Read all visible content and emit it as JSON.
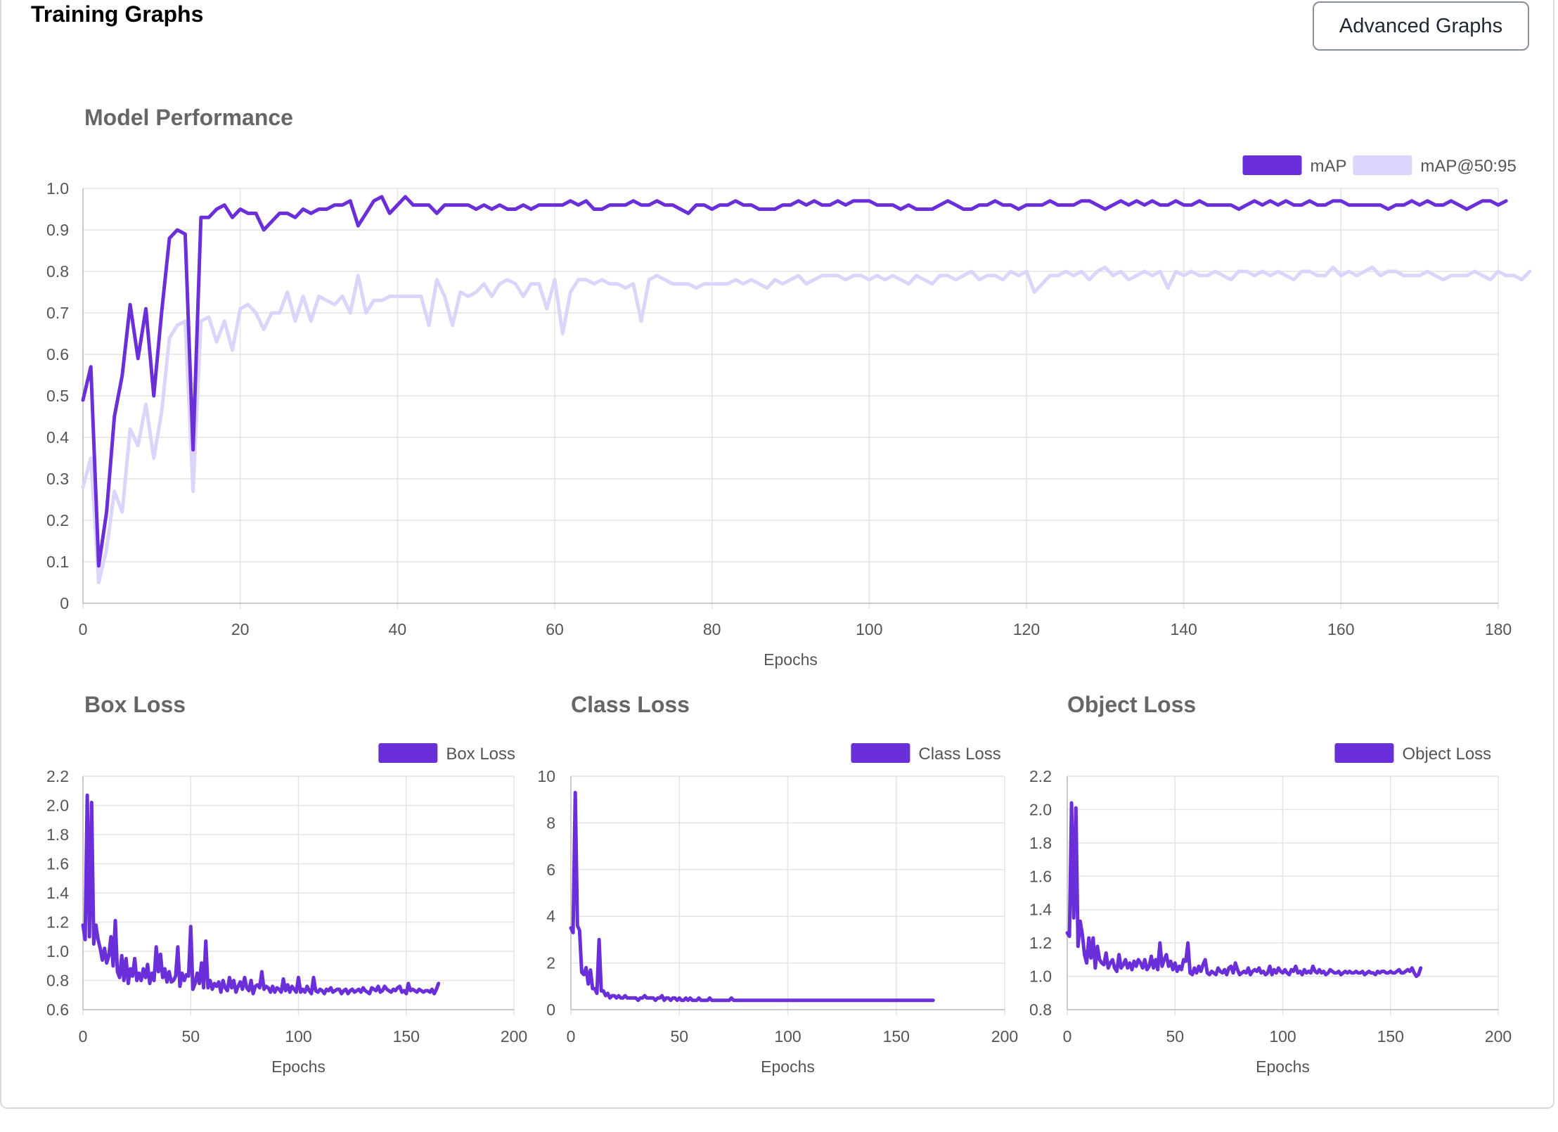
{
  "header": {
    "title": "Training Graphs",
    "advanced_button": "Advanced Graphs"
  },
  "colors": {
    "primary": "#6a2fd8",
    "secondary": "#dcd4fa",
    "grid": "#e4e4e4",
    "axis_text": "#555555",
    "title_text": "#666666"
  },
  "chart_data": [
    {
      "id": "performance",
      "type": "line",
      "title": "Model Performance",
      "xlabel": "Epochs",
      "ylabel": "",
      "xlim": [
        0,
        180
      ],
      "ylim": [
        0,
        1.0
      ],
      "xticks": [
        "0",
        "20",
        "40",
        "60",
        "80",
        "100",
        "120",
        "140",
        "160",
        "180"
      ],
      "yticks": [
        "0",
        "0.1",
        "0.2",
        "0.3",
        "0.4",
        "0.5",
        "0.6",
        "0.7",
        "0.8",
        "0.9",
        "1.0"
      ],
      "legend_position": "top-right",
      "grid": true,
      "series": [
        {
          "name": "mAP",
          "color": "#6a2fd8",
          "values": [
            0.49,
            0.57,
            0.09,
            0.22,
            0.45,
            0.55,
            0.72,
            0.59,
            0.71,
            0.5,
            0.7,
            0.88,
            0.9,
            0.89,
            0.37,
            0.93,
            0.93,
            0.95,
            0.96,
            0.93,
            0.95,
            0.94,
            0.94,
            0.9,
            0.92,
            0.94,
            0.94,
            0.93,
            0.95,
            0.94,
            0.95,
            0.95,
            0.96,
            0.96,
            0.97,
            0.91,
            0.94,
            0.97,
            0.98,
            0.94,
            0.96,
            0.98,
            0.96,
            0.96,
            0.96,
            0.94,
            0.96,
            0.96,
            0.96,
            0.96,
            0.95,
            0.96,
            0.95,
            0.96,
            0.95,
            0.95,
            0.96,
            0.95,
            0.96,
            0.96,
            0.96,
            0.96,
            0.97,
            0.96,
            0.97,
            0.95,
            0.95,
            0.96,
            0.96,
            0.96,
            0.97,
            0.96,
            0.96,
            0.97,
            0.96,
            0.96,
            0.95,
            0.94,
            0.96,
            0.96,
            0.95,
            0.96,
            0.96,
            0.97,
            0.96,
            0.96,
            0.95,
            0.95,
            0.95,
            0.96,
            0.96,
            0.97,
            0.96,
            0.97,
            0.96,
            0.96,
            0.97,
            0.96,
            0.97,
            0.97,
            0.97,
            0.96,
            0.96,
            0.96,
            0.95,
            0.96,
            0.95,
            0.95,
            0.95,
            0.96,
            0.97,
            0.96,
            0.95,
            0.95,
            0.96,
            0.96,
            0.97,
            0.96,
            0.96,
            0.95,
            0.96,
            0.96,
            0.96,
            0.97,
            0.96,
            0.96,
            0.96,
            0.97,
            0.97,
            0.96,
            0.95,
            0.96,
            0.97,
            0.96,
            0.97,
            0.96,
            0.97,
            0.96,
            0.96,
            0.97,
            0.96,
            0.96,
            0.97,
            0.96,
            0.96,
            0.96,
            0.96,
            0.95,
            0.96,
            0.97,
            0.96,
            0.97,
            0.96,
            0.97,
            0.96,
            0.96,
            0.97,
            0.96,
            0.96,
            0.97,
            0.97,
            0.96,
            0.96,
            0.96,
            0.96,
            0.96,
            0.95,
            0.96,
            0.96,
            0.97,
            0.96,
            0.97,
            0.96,
            0.96,
            0.97,
            0.96,
            0.95,
            0.96,
            0.97,
            0.97,
            0.96,
            0.97
          ]
        },
        {
          "name": "mAP@50:95",
          "color": "#dcd4fa",
          "values": [
            0.28,
            0.35,
            0.05,
            0.13,
            0.27,
            0.22,
            0.42,
            0.38,
            0.48,
            0.35,
            0.46,
            0.64,
            0.67,
            0.68,
            0.27,
            0.68,
            0.69,
            0.63,
            0.68,
            0.61,
            0.71,
            0.72,
            0.7,
            0.66,
            0.7,
            0.7,
            0.75,
            0.68,
            0.74,
            0.68,
            0.74,
            0.73,
            0.72,
            0.74,
            0.7,
            0.79,
            0.7,
            0.73,
            0.73,
            0.74,
            0.74,
            0.74,
            0.74,
            0.74,
            0.67,
            0.78,
            0.74,
            0.67,
            0.75,
            0.74,
            0.75,
            0.77,
            0.74,
            0.77,
            0.78,
            0.77,
            0.74,
            0.77,
            0.77,
            0.71,
            0.78,
            0.65,
            0.75,
            0.78,
            0.78,
            0.77,
            0.78,
            0.77,
            0.77,
            0.76,
            0.77,
            0.68,
            0.78,
            0.79,
            0.78,
            0.77,
            0.77,
            0.77,
            0.76,
            0.77,
            0.77,
            0.77,
            0.77,
            0.78,
            0.77,
            0.78,
            0.77,
            0.76,
            0.78,
            0.77,
            0.78,
            0.79,
            0.77,
            0.78,
            0.79,
            0.79,
            0.79,
            0.78,
            0.79,
            0.79,
            0.78,
            0.79,
            0.78,
            0.79,
            0.78,
            0.77,
            0.79,
            0.78,
            0.77,
            0.79,
            0.79,
            0.78,
            0.79,
            0.8,
            0.78,
            0.79,
            0.79,
            0.78,
            0.8,
            0.79,
            0.8,
            0.75,
            0.77,
            0.79,
            0.79,
            0.8,
            0.79,
            0.8,
            0.78,
            0.8,
            0.81,
            0.79,
            0.8,
            0.78,
            0.79,
            0.8,
            0.79,
            0.8,
            0.76,
            0.8,
            0.79,
            0.8,
            0.79,
            0.79,
            0.8,
            0.79,
            0.78,
            0.8,
            0.8,
            0.79,
            0.8,
            0.79,
            0.8,
            0.79,
            0.78,
            0.8,
            0.8,
            0.79,
            0.79,
            0.81,
            0.79,
            0.8,
            0.79,
            0.8,
            0.81,
            0.79,
            0.8,
            0.8,
            0.79,
            0.79,
            0.79,
            0.8,
            0.79,
            0.78,
            0.79,
            0.79,
            0.79,
            0.8,
            0.79,
            0.78,
            0.8,
            0.79,
            0.79,
            0.78,
            0.8
          ]
        }
      ]
    },
    {
      "id": "box",
      "type": "line",
      "title": "Box Loss",
      "xlabel": "Epochs",
      "ylabel": "",
      "xlim": [
        0,
        200
      ],
      "ylim": [
        0.6,
        2.2
      ],
      "xticks": [
        "0",
        "50",
        "100",
        "150",
        "200"
      ],
      "yticks": [
        "0.6",
        "0.8",
        "1.0",
        "1.2",
        "1.4",
        "1.6",
        "1.8",
        "2.0",
        "2.2"
      ],
      "legend_position": "top-right",
      "grid": true,
      "series": [
        {
          "name": "Box Loss",
          "color": "#6a2fd8",
          "values": [
            1.18,
            1.08,
            2.07,
            1.1,
            2.02,
            1.05,
            1.18,
            1.08,
            1.02,
            0.94,
            1.02,
            0.92,
            0.97,
            1.1,
            0.9,
            1.21,
            0.86,
            0.82,
            0.97,
            0.8,
            0.95,
            0.78,
            0.88,
            0.83,
            0.95,
            0.8,
            0.85,
            0.8,
            0.88,
            0.82,
            0.91,
            0.78,
            0.85,
            0.8,
            1.03,
            0.86,
            0.98,
            0.82,
            0.88,
            0.79,
            0.86,
            0.79,
            0.8,
            0.83,
            1.03,
            0.76,
            0.85,
            0.8,
            0.84,
            0.83,
            1.17,
            0.74,
            0.78,
            0.85,
            0.78,
            0.92,
            0.75,
            1.07,
            0.75,
            0.8,
            0.74,
            0.78,
            0.76,
            0.79,
            0.72,
            0.8,
            0.75,
            0.73,
            0.82,
            0.75,
            0.8,
            0.72,
            0.76,
            0.79,
            0.74,
            0.82,
            0.75,
            0.73,
            0.8,
            0.71,
            0.76,
            0.77,
            0.75,
            0.86,
            0.74,
            0.76,
            0.75,
            0.72,
            0.76,
            0.72,
            0.75,
            0.74,
            0.72,
            0.81,
            0.73,
            0.77,
            0.72,
            0.76,
            0.74,
            0.72,
            0.82,
            0.72,
            0.74,
            0.72,
            0.76,
            0.73,
            0.71,
            0.82,
            0.73,
            0.72,
            0.74,
            0.73,
            0.71,
            0.74,
            0.73,
            0.75,
            0.72,
            0.73,
            0.74,
            0.74,
            0.71,
            0.73,
            0.74,
            0.71,
            0.73,
            0.74,
            0.72,
            0.73,
            0.74,
            0.72,
            0.75,
            0.73,
            0.72,
            0.71,
            0.75,
            0.74,
            0.73,
            0.76,
            0.72,
            0.73,
            0.76,
            0.74,
            0.73,
            0.72,
            0.74,
            0.73,
            0.75,
            0.76,
            0.72,
            0.73,
            0.71,
            0.78,
            0.73,
            0.74,
            0.73,
            0.72,
            0.74,
            0.73,
            0.72,
            0.73,
            0.73,
            0.72,
            0.74,
            0.71,
            0.74,
            0.78
          ]
        }
      ]
    },
    {
      "id": "class",
      "type": "line",
      "title": "Class Loss",
      "xlabel": "Epochs",
      "ylabel": "",
      "xlim": [
        0,
        200
      ],
      "ylim": [
        0,
        10
      ],
      "xticks": [
        "0",
        "50",
        "100",
        "150",
        "200"
      ],
      "yticks": [
        "0",
        "2",
        "4",
        "6",
        "8",
        "10"
      ],
      "legend_position": "top-right",
      "grid": true,
      "series": [
        {
          "name": "Class Loss",
          "color": "#6a2fd8",
          "values": [
            3.5,
            3.3,
            9.3,
            3.6,
            3.4,
            1.6,
            1.5,
            1.8,
            1.1,
            1.7,
            0.9,
            0.9,
            0.7,
            3.0,
            0.8,
            0.8,
            0.6,
            0.7,
            0.5,
            0.6,
            0.6,
            0.5,
            0.6,
            0.5,
            0.5,
            0.6,
            0.5,
            0.5,
            0.5,
            0.5,
            0.5,
            0.4,
            0.5,
            0.5,
            0.6,
            0.5,
            0.5,
            0.5,
            0.5,
            0.4,
            0.5,
            0.5,
            0.6,
            0.4,
            0.5,
            0.5,
            0.4,
            0.5,
            0.5,
            0.4,
            0.5,
            0.4,
            0.4,
            0.5,
            0.4,
            0.5,
            0.4,
            0.4,
            0.4,
            0.5,
            0.4,
            0.4,
            0.4,
            0.4,
            0.5,
            0.4,
            0.4,
            0.4,
            0.4,
            0.4,
            0.4,
            0.4,
            0.4,
            0.4,
            0.5,
            0.4,
            0.4,
            0.4,
            0.4,
            0.4,
            0.4,
            0.4,
            0.4,
            0.4,
            0.4,
            0.4,
            0.4,
            0.4,
            0.4,
            0.4,
            0.4,
            0.4,
            0.4,
            0.4,
            0.4,
            0.4,
            0.4,
            0.4,
            0.4,
            0.4,
            0.4,
            0.4,
            0.4,
            0.4,
            0.4,
            0.4,
            0.4,
            0.4,
            0.4,
            0.4,
            0.4,
            0.4,
            0.4,
            0.4,
            0.4,
            0.4,
            0.4,
            0.4,
            0.4,
            0.4,
            0.4,
            0.4,
            0.4,
            0.4,
            0.4,
            0.4,
            0.4,
            0.4,
            0.4,
            0.4,
            0.4,
            0.4,
            0.4,
            0.4,
            0.4,
            0.4,
            0.4,
            0.4,
            0.4,
            0.4,
            0.4,
            0.4,
            0.4,
            0.4,
            0.4,
            0.4,
            0.4,
            0.4,
            0.4,
            0.4,
            0.4,
            0.4,
            0.4,
            0.4,
            0.4,
            0.4,
            0.4,
            0.4,
            0.4,
            0.4,
            0.4,
            0.4,
            0.4,
            0.4,
            0.4,
            0.4,
            0.4,
            0.4
          ]
        }
      ]
    },
    {
      "id": "object",
      "type": "line",
      "title": "Object Loss",
      "xlabel": "Epochs",
      "ylabel": "",
      "xlim": [
        0,
        200
      ],
      "ylim": [
        0.8,
        2.2
      ],
      "xticks": [
        "0",
        "50",
        "100",
        "150",
        "200"
      ],
      "yticks": [
        "0.8",
        "1.0",
        "1.2",
        "1.4",
        "1.6",
        "1.8",
        "2.0",
        "2.2"
      ],
      "legend_position": "top-right",
      "grid": true,
      "series": [
        {
          "name": "Object Loss",
          "color": "#6a2fd8",
          "values": [
            1.26,
            1.24,
            2.04,
            1.35,
            2.01,
            1.18,
            1.33,
            1.25,
            1.13,
            1.08,
            1.23,
            1.11,
            1.23,
            1.05,
            1.18,
            1.1,
            1.08,
            1.07,
            1.14,
            1.05,
            1.08,
            1.1,
            1.05,
            1.03,
            1.13,
            1.05,
            1.07,
            1.1,
            1.05,
            1.08,
            1.04,
            1.09,
            1.06,
            1.1,
            1.08,
            1.05,
            1.1,
            1.04,
            1.06,
            1.12,
            1.05,
            1.1,
            1.04,
            1.2,
            1.06,
            1.1,
            1.13,
            1.06,
            1.09,
            1.04,
            1.08,
            1.03,
            1.06,
            1.04,
            1.1,
            1.09,
            1.2,
            1.02,
            1.01,
            1.05,
            1.02,
            1.06,
            1.03,
            1.07,
            1.1,
            1.02,
            1.01,
            1.03,
            1.02,
            1.01,
            1.05,
            1.03,
            1.02,
            1.04,
            1.01,
            1.05,
            1.06,
            1.02,
            1.08,
            1.04,
            1.01,
            1.02,
            1.03,
            1.02,
            1.05,
            1.01,
            1.03,
            1.04,
            1.03,
            1.05,
            1.02,
            1.03,
            1.01,
            1.02,
            1.06,
            1.01,
            1.04,
            1.02,
            1.05,
            1.03,
            1.02,
            1.04,
            1.02,
            1.01,
            1.04,
            1.03,
            1.06,
            1.02,
            1.03,
            1.01,
            1.04,
            1.02,
            1.03,
            1.02,
            1.06,
            1.03,
            1.02,
            1.04,
            1.02,
            1.03,
            1.01,
            1.02,
            1.04,
            1.03,
            1.02,
            1.02,
            1.03,
            1.01,
            1.02,
            1.03,
            1.02,
            1.03,
            1.02,
            1.02,
            1.03,
            1.02,
            1.02,
            1.03,
            1.01,
            1.02,
            1.03,
            1.02,
            1.02,
            1.01,
            1.03,
            1.02,
            1.03,
            1.03,
            1.02,
            1.02,
            1.03,
            1.02,
            1.02,
            1.03,
            1.04,
            1.02,
            1.02,
            1.03,
            1.04,
            1.03,
            1.05,
            1.02,
            1.0,
            1.01,
            1.05
          ]
        }
      ]
    }
  ]
}
